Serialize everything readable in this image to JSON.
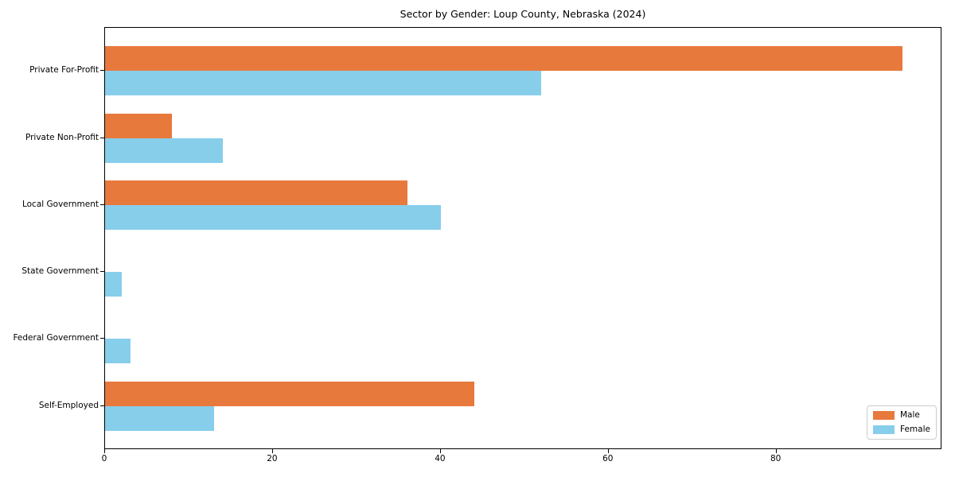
{
  "title": "Sector by Gender: Loup County, Nebraska (2024)",
  "chart_data": {
    "type": "bar",
    "orientation": "horizontal",
    "title": "Sector by Gender: Loup County, Nebraska (2024)",
    "categories": [
      "Private For-Profit",
      "Private Non-Profit",
      "Local Government",
      "State Government",
      "Federal Government",
      "Self-Employed"
    ],
    "series": [
      {
        "name": "Male",
        "color": "#e8793d",
        "values": [
          95,
          8,
          36,
          0,
          0,
          44
        ]
      },
      {
        "name": "Female",
        "color": "#87ceeb",
        "values": [
          52,
          14,
          40,
          2,
          3,
          13
        ]
      }
    ],
    "xlabel": "",
    "ylabel": "",
    "xlim": [
      0,
      99.75
    ],
    "xticks": [
      0,
      20,
      40,
      60,
      80
    ],
    "grid": false,
    "legend_position": "lower-right",
    "legend_labels": [
      "Male",
      "Female"
    ]
  },
  "colors": {
    "male": "#e8793d",
    "female": "#87ceeb",
    "axis": "#000000",
    "legend_border": "#cccccc",
    "background": "#ffffff"
  }
}
